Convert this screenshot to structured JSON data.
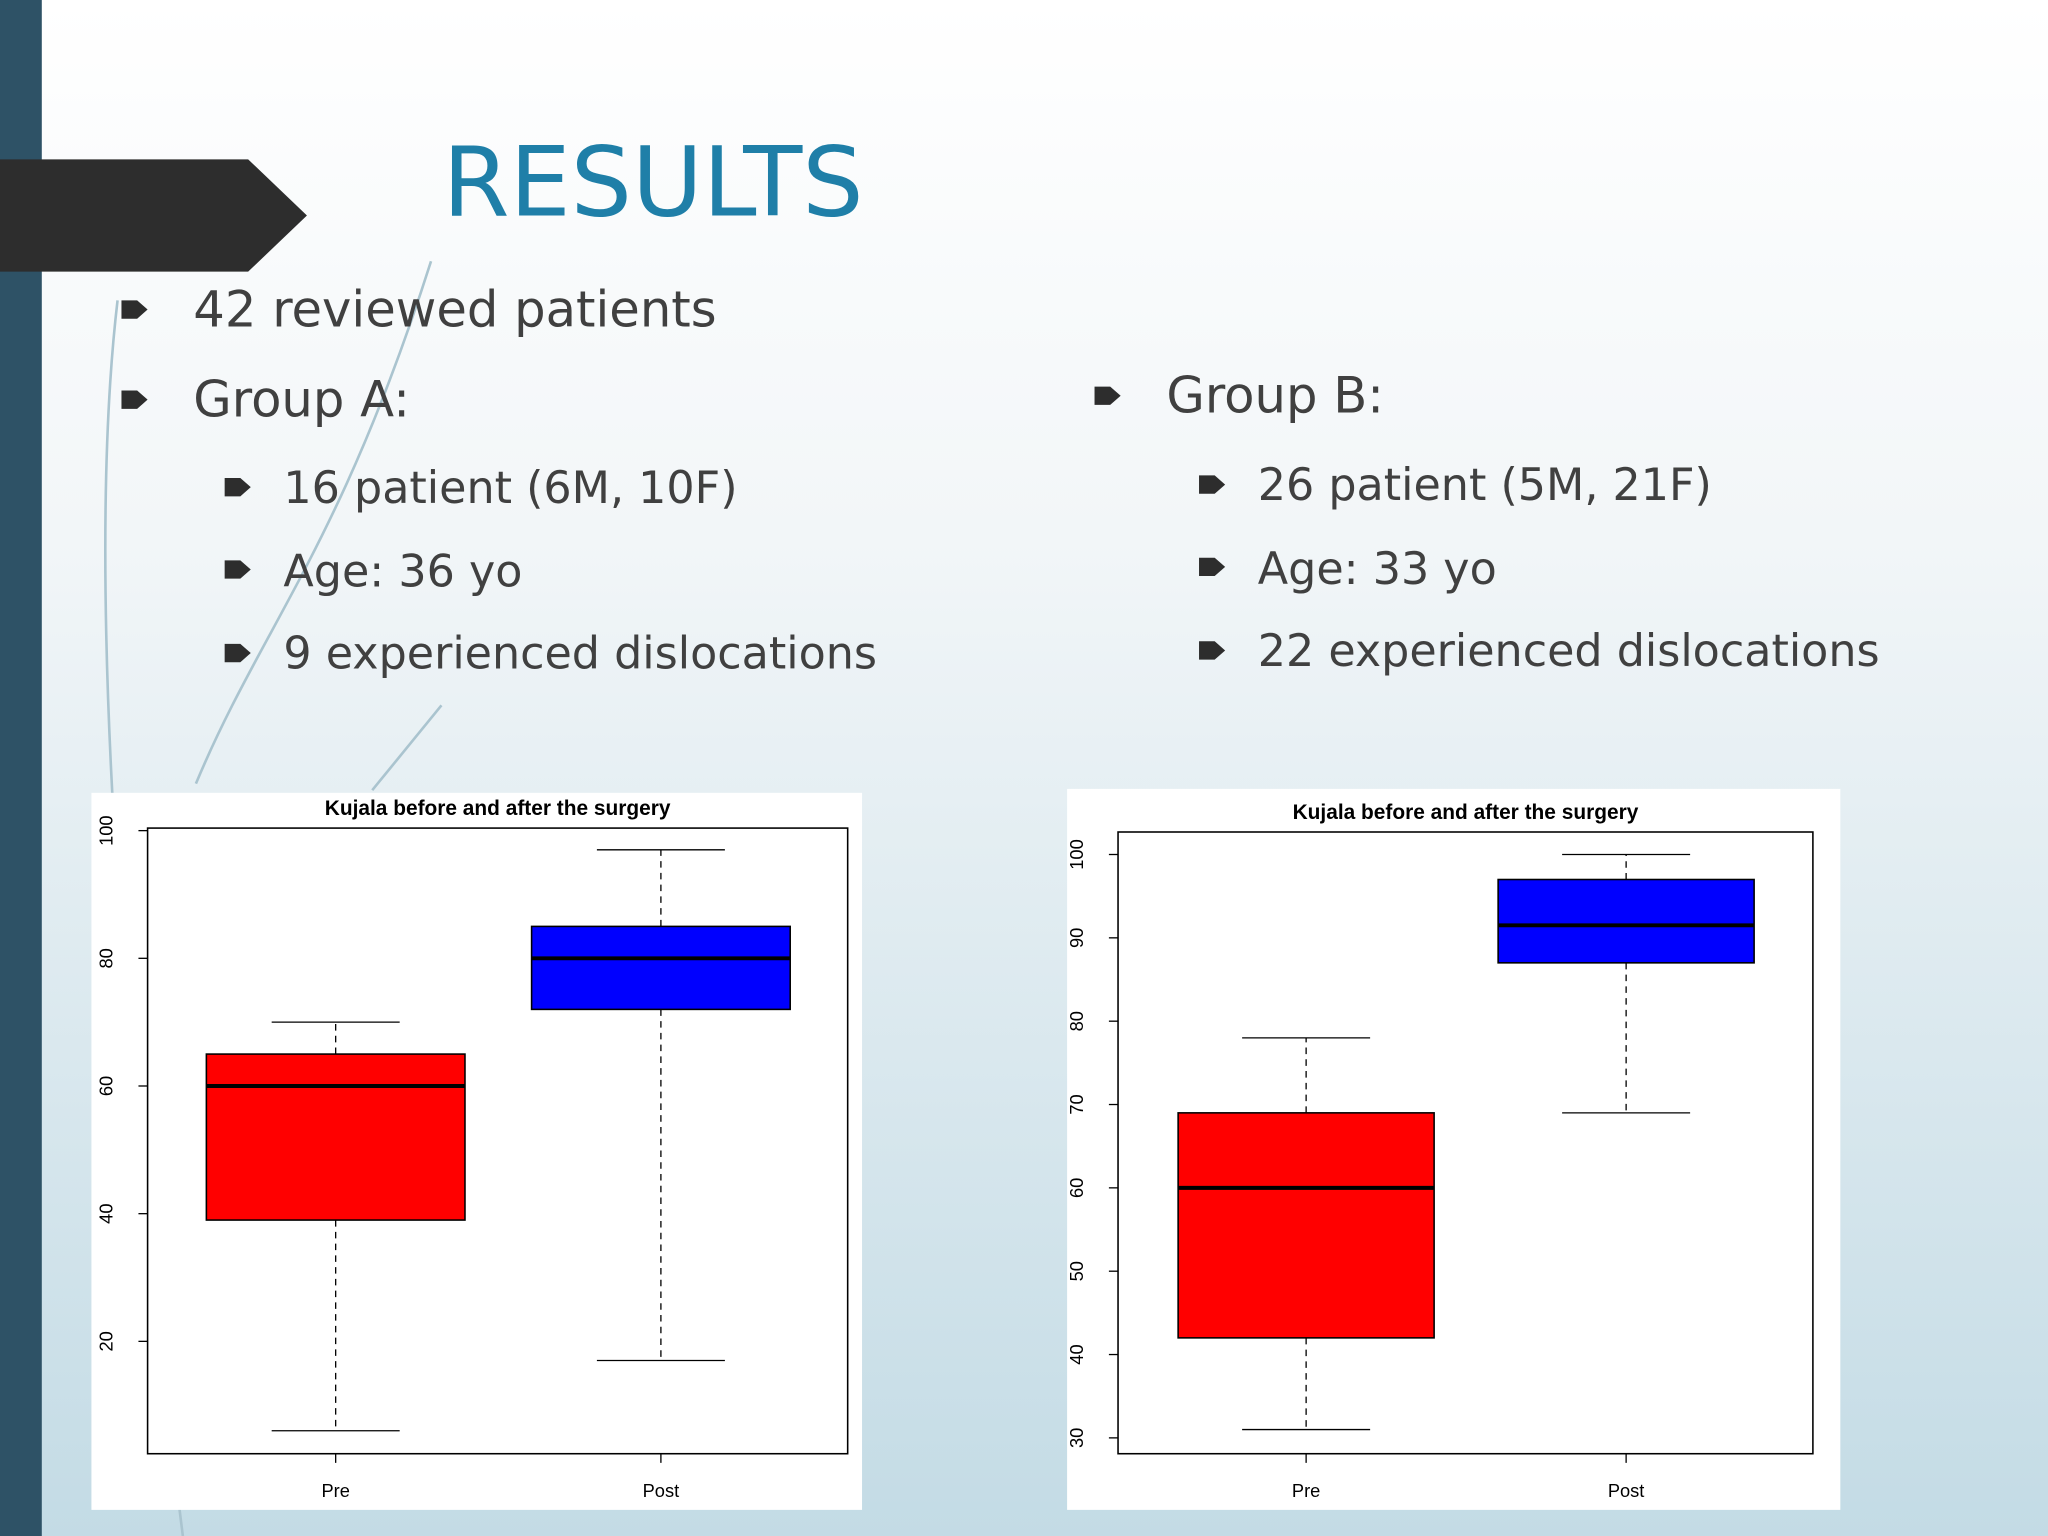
{
  "slide": {
    "title": "RESULTS",
    "bullets": [
      "42 reviewed patients",
      "Group A:",
      "Group B:"
    ],
    "group_a": [
      "16 patient (6M, 10F)",
      "Age: 36 yo",
      "9 experienced dislocations"
    ],
    "group_b": [
      "26 patient (5M, 21F)",
      "Age: 33 yo",
      "22 experienced dislocations"
    ]
  },
  "chart_data": [
    {
      "type": "box",
      "title": "Kujala before and after the surgery",
      "categories": [
        "Pre",
        "Post"
      ],
      "boxes": [
        {
          "min": 6,
          "q1": 39,
          "median": 60,
          "q3": 65,
          "max": 70,
          "color": "#ff0000"
        },
        {
          "min": 17,
          "q1": 72,
          "median": 80,
          "q3": 85,
          "max": 97,
          "color": "#0000ff"
        }
      ],
      "ylim": [
        2.4,
        100.4
      ],
      "yticks": [
        20,
        40,
        60,
        80,
        100
      ]
    },
    {
      "type": "box",
      "title": "Kujala before and after the surgery",
      "categories": [
        "Pre",
        "Post"
      ],
      "boxes": [
        {
          "min": 31,
          "q1": 42,
          "median": 60,
          "q3": 69,
          "max": 78,
          "color": "#ff0000"
        },
        {
          "min": 69,
          "q1": 87,
          "median": 91.5,
          "q3": 97,
          "max": 100,
          "color": "#0000ff"
        }
      ],
      "ylim": [
        28.1,
        102.7
      ],
      "yticks": [
        30,
        40,
        50,
        60,
        70,
        80,
        90,
        100
      ]
    }
  ]
}
